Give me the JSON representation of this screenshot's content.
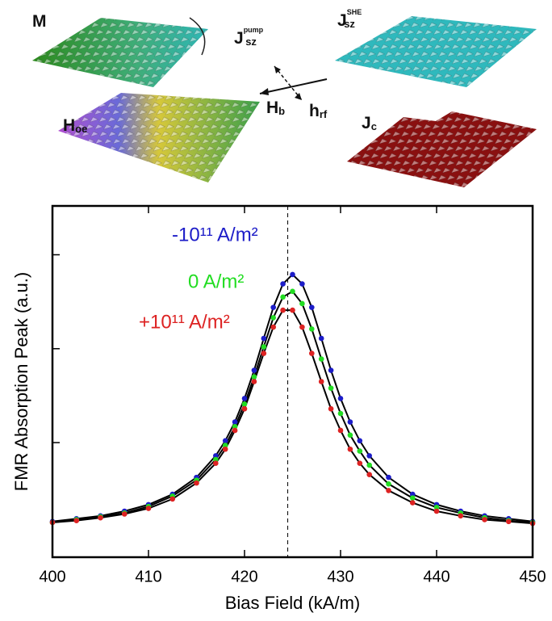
{
  "illustration_labels": [
    {
      "main": "M"
    },
    {
      "main": "J",
      "sub": "sz",
      "sup": "pump"
    },
    {
      "main": "J",
      "sub": "sz",
      "sup": "SHE"
    },
    {
      "main": "H",
      "sub": "b"
    },
    {
      "main": "h",
      "sub": "rf"
    },
    {
      "main": "H",
      "sub": "oe"
    },
    {
      "main": "J",
      "sub": "c"
    }
  ],
  "chart_data": {
    "type": "scatter-fit",
    "x_label": "Bias Field (kA/m)",
    "y_label": "FMR Absorption Peak (a.u.)",
    "x": [
      400,
      402.5,
      405,
      407.5,
      410,
      412.5,
      415,
      417,
      418,
      419,
      420,
      421,
      422,
      423,
      424,
      425,
      426,
      427,
      428,
      429,
      430,
      431,
      432,
      433,
      435,
      437.5,
      440,
      442.5,
      445,
      447.5,
      450
    ],
    "series": [
      {
        "name": "-10¹¹ A/m²",
        "color": "#1c1cc8",
        "values": [
          0.16,
          0.19,
          0.22,
          0.27,
          0.34,
          0.45,
          0.63,
          0.86,
          1.02,
          1.22,
          1.47,
          1.77,
          2.11,
          2.44,
          2.69,
          2.79,
          2.69,
          2.44,
          2.11,
          1.77,
          1.47,
          1.22,
          1.02,
          0.86,
          0.63,
          0.45,
          0.34,
          0.27,
          0.22,
          0.19,
          0.16
        ]
      },
      {
        "name": "0 A/m²",
        "color": "#22dd22",
        "values": [
          0.15,
          0.18,
          0.21,
          0.25,
          0.32,
          0.43,
          0.6,
          0.82,
          0.97,
          1.17,
          1.41,
          1.7,
          2.02,
          2.33,
          2.55,
          2.61,
          2.48,
          2.21,
          1.89,
          1.58,
          1.31,
          1.08,
          0.91,
          0.76,
          0.56,
          0.41,
          0.31,
          0.25,
          0.2,
          0.17,
          0.15
        ]
      },
      {
        "name": "+10¹¹ A/m²",
        "color": "#dd2222",
        "values": [
          0.15,
          0.17,
          0.2,
          0.24,
          0.3,
          0.4,
          0.57,
          0.78,
          0.93,
          1.13,
          1.36,
          1.65,
          1.95,
          2.23,
          2.41,
          2.41,
          2.23,
          1.95,
          1.65,
          1.36,
          1.13,
          0.93,
          0.78,
          0.66,
          0.49,
          0.36,
          0.27,
          0.22,
          0.18,
          0.16,
          0.14
        ]
      }
    ],
    "fit_color": "#000000",
    "vline": 424.5,
    "xlim": [
      400,
      450
    ],
    "xticks": [
      400,
      410,
      420,
      430,
      440,
      450
    ],
    "ylim": [
      -0.22,
      3.52
    ],
    "yticks": [
      1,
      2,
      3
    ]
  }
}
